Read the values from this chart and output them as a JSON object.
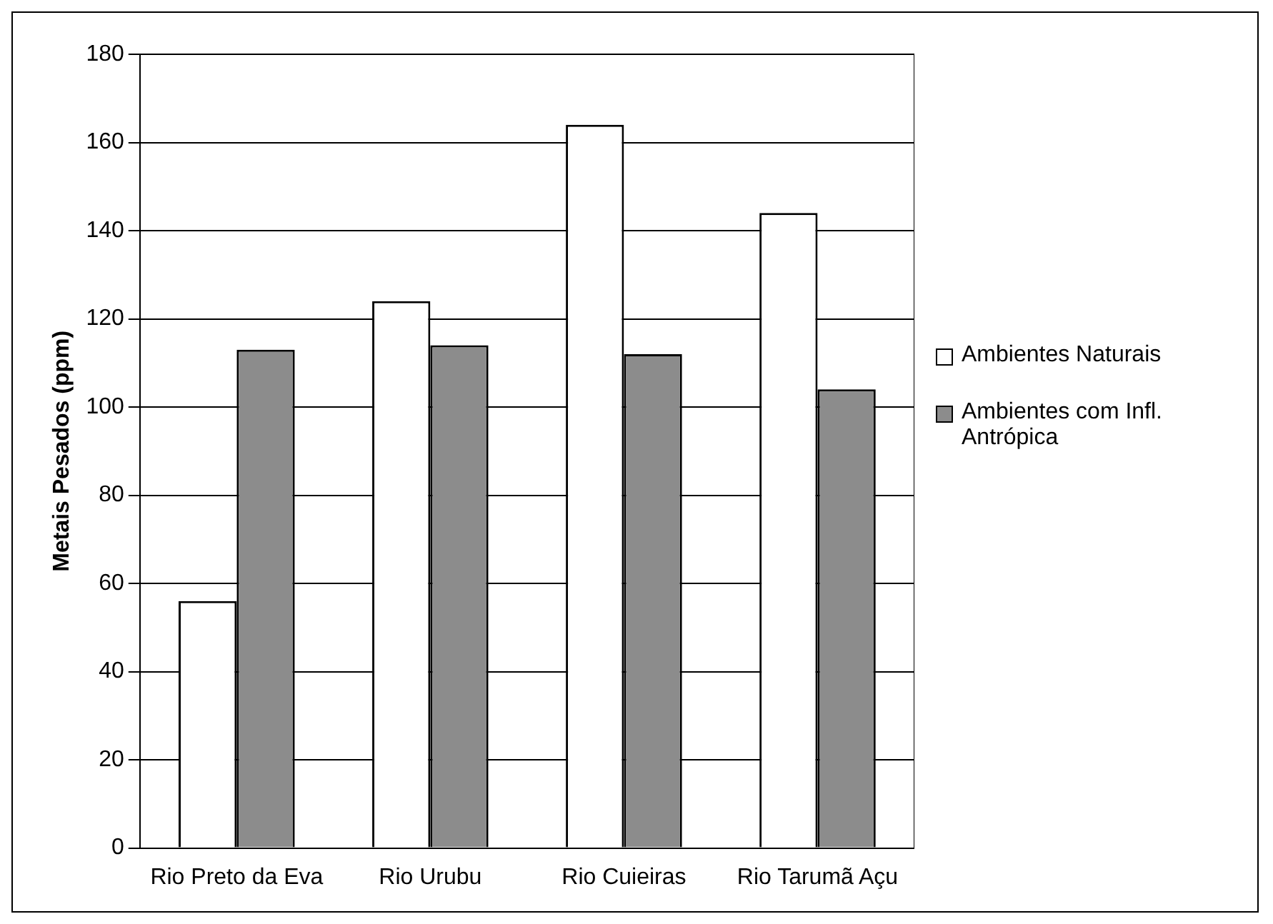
{
  "chart_data": {
    "type": "bar",
    "ylabel": "Metais Pesados (ppm)",
    "categories": [
      "Rio Preto da Eva",
      "Rio Urubu",
      "Rio Cuieiras",
      "Rio Tarumã Açu"
    ],
    "series": [
      {
        "name": "Ambientes Naturais",
        "color": "#ffffff",
        "values": [
          56,
          124,
          164,
          144
        ]
      },
      {
        "name": "Ambientes com Infl. Antrópica",
        "color": "#8c8c8c",
        "values": [
          113,
          114,
          112,
          104
        ]
      }
    ],
    "ylim": [
      0,
      180
    ],
    "yticks": [
      0,
      20,
      40,
      60,
      80,
      100,
      120,
      140,
      160,
      180
    ],
    "grid": "y",
    "legend": "right"
  }
}
